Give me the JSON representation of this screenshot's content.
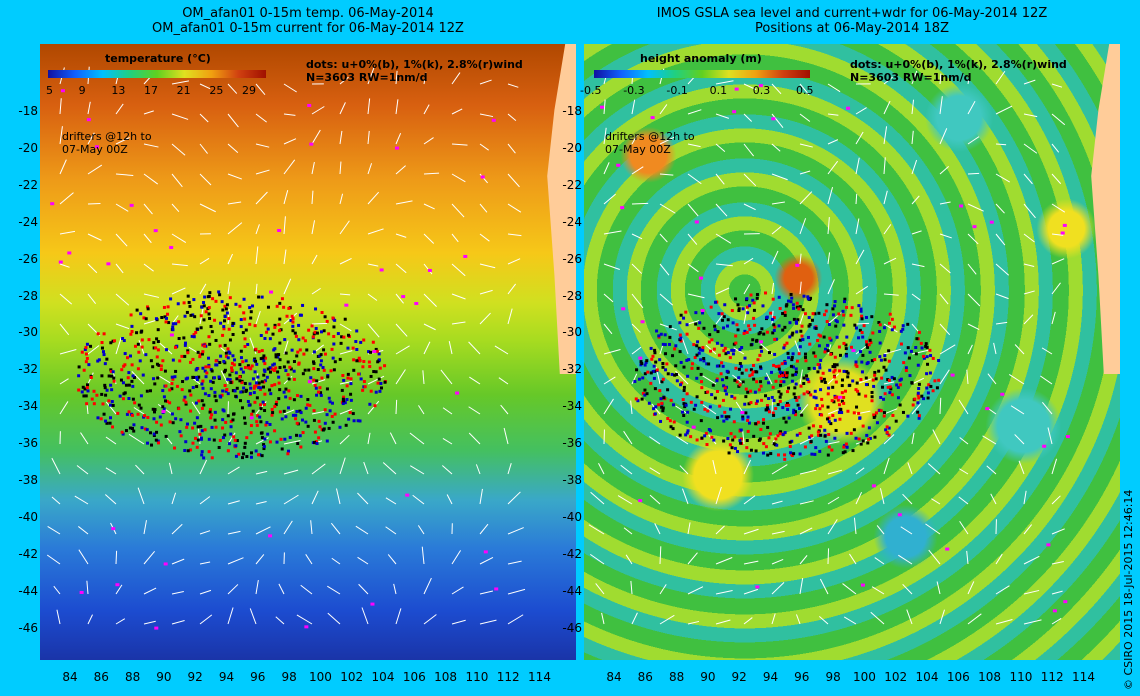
{
  "left": {
    "title_line1": "OM_afan01 0-15m temp. 06-May-2014",
    "title_line2": "OM_afan01 0-15m current for 06-May-2014 12Z",
    "colorbar_title": "temperature (°C)",
    "colorbar_ticks": [
      "5",
      "9",
      "13",
      "17",
      "21",
      "25",
      "29"
    ],
    "dots_line1": "dots: u+0%(b), 1%(k), 2.8%(r)wind",
    "dots_line2": "N=3603 RW=1nm/d",
    "drifters_line1": "drifters @12h to",
    "drifters_line2": "07-May 00Z"
  },
  "right": {
    "title_line1": "IMOS GSLA sea level and current+wdr for 06-May-2014 12Z",
    "title_line2": "Positions at 06-May-2014 18Z",
    "colorbar_title": "height anomaly (m)",
    "colorbar_ticks": [
      "-0.5",
      "-0.3",
      "-0.1",
      "0.1",
      "0.3",
      "0.5"
    ],
    "dots_line1": "dots: u+0%(b), 1%(k), 2.8%(r)wind",
    "dots_line2": "N=3603 RW=1nm/d",
    "drifters_line1": "drifters @12h to",
    "drifters_line2": "07-May 00Z"
  },
  "y_axis": [
    "-18",
    "-20",
    "-22",
    "-24",
    "-26",
    "-28",
    "-30",
    "-32",
    "-34",
    "-36",
    "-38",
    "-40",
    "-42",
    "-44",
    "-46"
  ],
  "x_axis": [
    "84",
    "86",
    "88",
    "90",
    "92",
    "94",
    "96",
    "98",
    "100",
    "102",
    "104",
    "106",
    "108",
    "110",
    "112",
    "114"
  ],
  "credit": "© CSIRO 2015   18-Jul-2015 12:46:14"
}
